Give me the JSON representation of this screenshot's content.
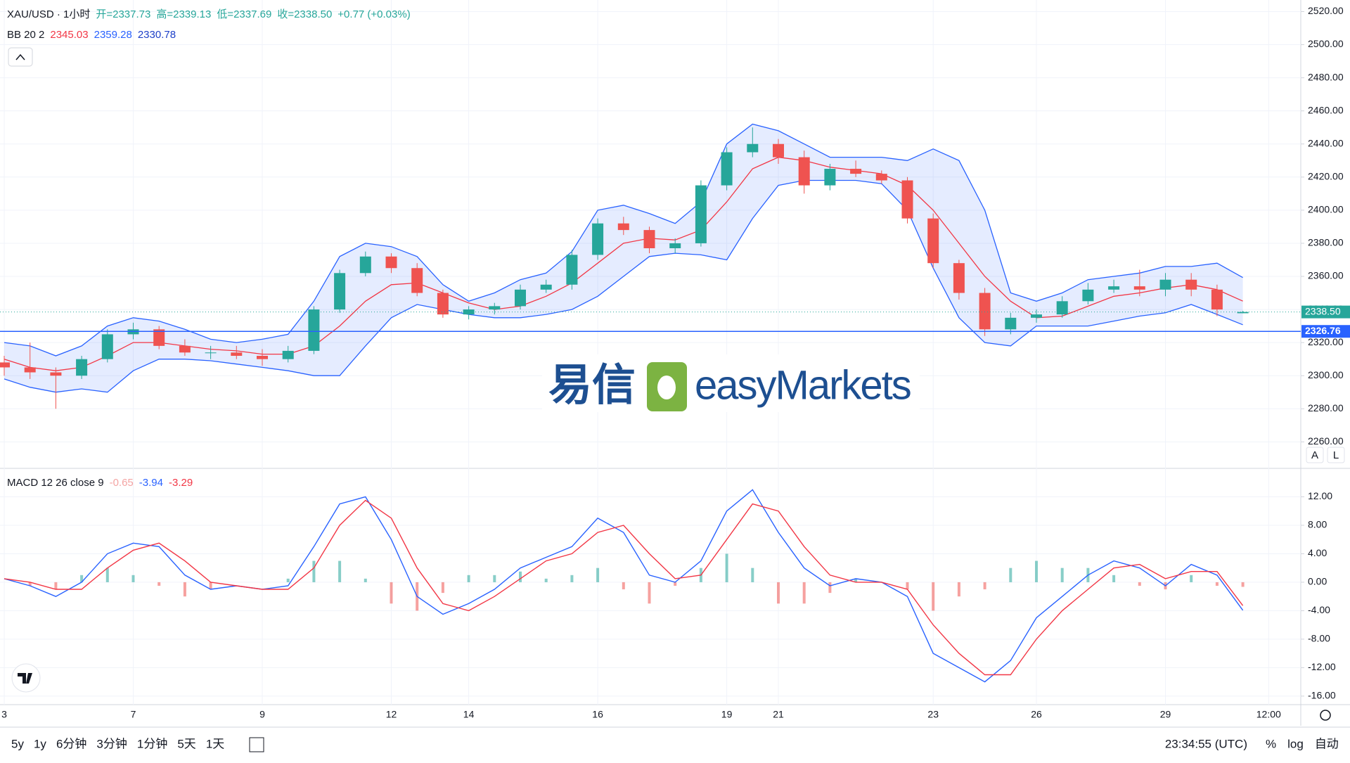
{
  "header": {
    "symbol": "XAU/USD · 1小时",
    "ohlc": [
      "开=2337.73",
      "高=2339.13",
      "低=2337.69",
      "收=2338.50"
    ],
    "change": "+0.77 (+0.03%)"
  },
  "bb_legend": "BB 20 2",
  "macd_legend": "MACD 12 26 close 9",
  "logo": {
    "cn": "易信",
    "en": "easyMarkets"
  },
  "scale_buttons": [
    "A",
    "L"
  ],
  "toolbar": {
    "ranges": [
      "5y",
      "1y",
      "6分钟",
      "3分钟",
      "1分钟",
      "5天",
      "1天"
    ],
    "time": "23:34:55 (UTC)",
    "options": [
      "%",
      "log",
      "自动"
    ]
  },
  "chart_data": [
    {
      "type": "candlestick",
      "up_color": "#26a69a",
      "down_color": "#ef5350",
      "ylim": [
        2244,
        2527
      ],
      "yticks": [
        {
          "value": 2260,
          "label": "2260.00"
        },
        {
          "value": 2280,
          "label": "2280.00"
        },
        {
          "value": 2300,
          "label": "2300.00"
        },
        {
          "value": 2320,
          "label": "2320.00"
        },
        {
          "value": 2340,
          "label": "2340.00"
        },
        {
          "value": 2360,
          "label": "2360.00"
        },
        {
          "value": 2380,
          "label": "2380.00"
        },
        {
          "value": 2400,
          "label": "2400.00"
        },
        {
          "value": 2420,
          "label": "2420.00"
        },
        {
          "value": 2440,
          "label": "2440.00"
        },
        {
          "value": 2460,
          "label": "2460.00"
        },
        {
          "value": 2480,
          "label": "2480.00"
        },
        {
          "value": 2500,
          "label": "2500.00"
        },
        {
          "value": 2520,
          "label": "2520.00"
        }
      ],
      "grid": true,
      "open": [
        2308,
        2305,
        2302,
        2300,
        2310,
        2325,
        2328,
        2318,
        2314,
        2314,
        2312,
        2310,
        2315,
        2340,
        2362,
        2372,
        2365,
        2350,
        2337,
        2340,
        2342,
        2352,
        2355,
        2373,
        2392,
        2388,
        2377,
        2380,
        2415,
        2435,
        2440,
        2432,
        2415,
        2425,
        2422,
        2418,
        2395,
        2368,
        2350,
        2328,
        2335,
        2337,
        2345,
        2352,
        2354,
        2352,
        2358,
        2352,
        2337.73,
        null
      ],
      "high": [
        2312,
        2320,
        2305,
        2312,
        2328,
        2332,
        2330,
        2322,
        2318,
        2318,
        2316,
        2318,
        2342,
        2364,
        2375,
        2374,
        2368,
        2352,
        2342,
        2344,
        2355,
        2358,
        2376,
        2395,
        2396,
        2390,
        2383,
        2418,
        2438,
        2450,
        2443,
        2436,
        2428,
        2430,
        2424,
        2420,
        2398,
        2370,
        2353,
        2338,
        2340,
        2348,
        2356,
        2358,
        2364,
        2362,
        2362,
        2355,
        2339.13,
        null
      ],
      "low": [
        2300,
        2298,
        2280,
        2298,
        2308,
        2322,
        2316,
        2312,
        2310,
        2310,
        2306,
        2308,
        2313,
        2338,
        2360,
        2362,
        2348,
        2335,
        2334,
        2337,
        2340,
        2350,
        2352,
        2370,
        2385,
        2374,
        2374,
        2378,
        2412,
        2432,
        2428,
        2410,
        2412,
        2420,
        2416,
        2392,
        2365,
        2346,
        2324,
        2325,
        2332,
        2335,
        2343,
        2350,
        2348,
        2348,
        2348,
        2336,
        2337.69,
        null
      ],
      "close": [
        2305,
        2302,
        2300,
        2310,
        2325,
        2328,
        2318,
        2314,
        2314,
        2312,
        2310,
        2315,
        2340,
        2362,
        2372,
        2365,
        2350,
        2337,
        2340,
        2342,
        2352,
        2355,
        2373,
        2392,
        2388,
        2377,
        2380,
        2415,
        2435,
        2440,
        2432,
        2415,
        2425,
        2422,
        2418,
        2395,
        2368,
        2350,
        2328,
        2335,
        2337,
        2345,
        2352,
        2354,
        2352,
        2358,
        2352,
        2340,
        2338.5,
        null
      ],
      "bands": {
        "fill": "rgba(41,98,255,0.12)",
        "series": [
          {
            "color": "#f23645",
            "values": [
              2310,
              2305,
              2303,
              2305,
              2312,
              2320,
              2320,
              2318,
              2316,
              2315,
              2313,
              2313,
              2318,
              2330,
              2345,
              2355,
              2356,
              2350,
              2344,
              2340,
              2342,
              2348,
              2356,
              2368,
              2380,
              2383,
              2382,
              2388,
              2405,
              2425,
              2432,
              2430,
              2426,
              2424,
              2422,
              2415,
              2400,
              2380,
              2360,
              2345,
              2335,
              2336,
              2342,
              2348,
              2350,
              2353,
              2355,
              2352,
              2345.03,
              null
            ]
          },
          {
            "color": "#2962ff",
            "values": [
              2320,
              2318,
              2312,
              2318,
              2330,
              2335,
              2333,
              2328,
              2322,
              2320,
              2322,
              2325,
              2345,
              2372,
              2380,
              2378,
              2372,
              2355,
              2345,
              2350,
              2358,
              2362,
              2375,
              2400,
              2403,
              2398,
              2392,
              2405,
              2440,
              2452,
              2448,
              2440,
              2432,
              2432,
              2432,
              2430,
              2437,
              2430,
              2400,
              2350,
              2345,
              2350,
              2358,
              2360,
              2362,
              2366,
              2366,
              2368,
              2359.28,
              null
            ]
          },
          {
            "color": "#2962ff",
            "values": [
              2298,
              2293,
              2290,
              2292,
              2290,
              2303,
              2310,
              2310,
              2309,
              2307,
              2305,
              2303,
              2300,
              2300,
              2318,
              2335,
              2343,
              2340,
              2337,
              2335,
              2335,
              2337,
              2340,
              2348,
              2360,
              2372,
              2374,
              2373,
              2370,
              2395,
              2415,
              2418,
              2418,
              2418,
              2416,
              2400,
              2365,
              2335,
              2320,
              2318,
              2330,
              2330,
              2330,
              2333,
              2336,
              2338,
              2343,
              2337,
              2330.78,
              null
            ]
          }
        ]
      },
      "last_price": {
        "value": 2338.5,
        "label": "2338.50",
        "color": "#26a69a"
      },
      "support_line": {
        "value": 2326.76,
        "color": "#2962ff"
      }
    },
    {
      "type": "macd",
      "categories": [
        "3",
        null,
        null,
        null,
        null,
        "7",
        null,
        null,
        null,
        null,
        "9",
        null,
        null,
        null,
        null,
        "12",
        null,
        null,
        "14",
        null,
        null,
        null,
        null,
        "16",
        null,
        null,
        null,
        null,
        "19",
        null,
        "21",
        null,
        null,
        null,
        null,
        null,
        "23",
        null,
        null,
        null,
        "26",
        null,
        null,
        null,
        null,
        "29",
        null,
        null,
        null,
        "12:00"
      ],
      "ylim": [
        -17.2,
        15.9
      ],
      "yticks": [
        {
          "value": 12,
          "label": "12.00"
        },
        {
          "value": 8,
          "label": "8.00"
        },
        {
          "value": 4,
          "label": "4.00"
        },
        {
          "value": 0,
          "label": "0.00"
        },
        {
          "value": -4,
          "label": "-4.00"
        },
        {
          "value": -8,
          "label": "-8.00"
        },
        {
          "value": -12,
          "label": "-12.00"
        },
        {
          "value": -16,
          "label": "-16.00"
        }
      ],
      "grid": true,
      "histogram": {
        "up_color": "#26a69a",
        "down_color": "#ef5350",
        "values": [
          0,
          -0.5,
          -1,
          1,
          2,
          1,
          -0.5,
          -2,
          -1,
          0,
          0,
          0.5,
          3,
          3,
          0.5,
          -3,
          -4,
          -1.5,
          1,
          1,
          1.5,
          0.5,
          1,
          2,
          -1,
          -3,
          -0.5,
          2,
          4,
          2,
          -3,
          -3,
          -1.5,
          0.5,
          0,
          -1,
          -4,
          -2,
          -1,
          2,
          3,
          2,
          2,
          1,
          -0.5,
          -1,
          1,
          -0.5,
          -0.65,
          null
        ]
      },
      "series": [
        {
          "color": "#2962ff",
          "values": [
            0.5,
            -0.5,
            -2,
            0,
            4,
            5.5,
            5,
            1,
            -1,
            -0.5,
            -1,
            -0.5,
            5,
            11,
            12,
            6,
            -2,
            -4.5,
            -3,
            -1,
            2,
            3.5,
            5,
            9,
            7,
            1,
            0,
            3,
            10,
            13,
            7,
            2,
            -0.5,
            0.5,
            0,
            -2,
            -10,
            -12,
            -14,
            -11,
            -5,
            -2,
            1,
            3,
            2,
            -0.5,
            2.5,
            1,
            -3.94,
            null
          ]
        },
        {
          "color": "#f23645",
          "values": [
            0.5,
            0,
            -1,
            -1,
            2,
            4.5,
            5.5,
            3,
            0,
            -0.5,
            -1,
            -1,
            2,
            8,
            11.5,
            9,
            2,
            -3,
            -4,
            -2,
            0.5,
            3,
            4,
            7,
            8,
            4,
            0.5,
            1,
            6,
            11,
            10,
            5,
            1,
            0,
            0,
            -1,
            -6,
            -10,
            -13,
            -13,
            -8,
            -4,
            -1,
            2,
            2.5,
            0.5,
            1.5,
            1.5,
            -3.29,
            null
          ]
        }
      ]
    }
  ]
}
